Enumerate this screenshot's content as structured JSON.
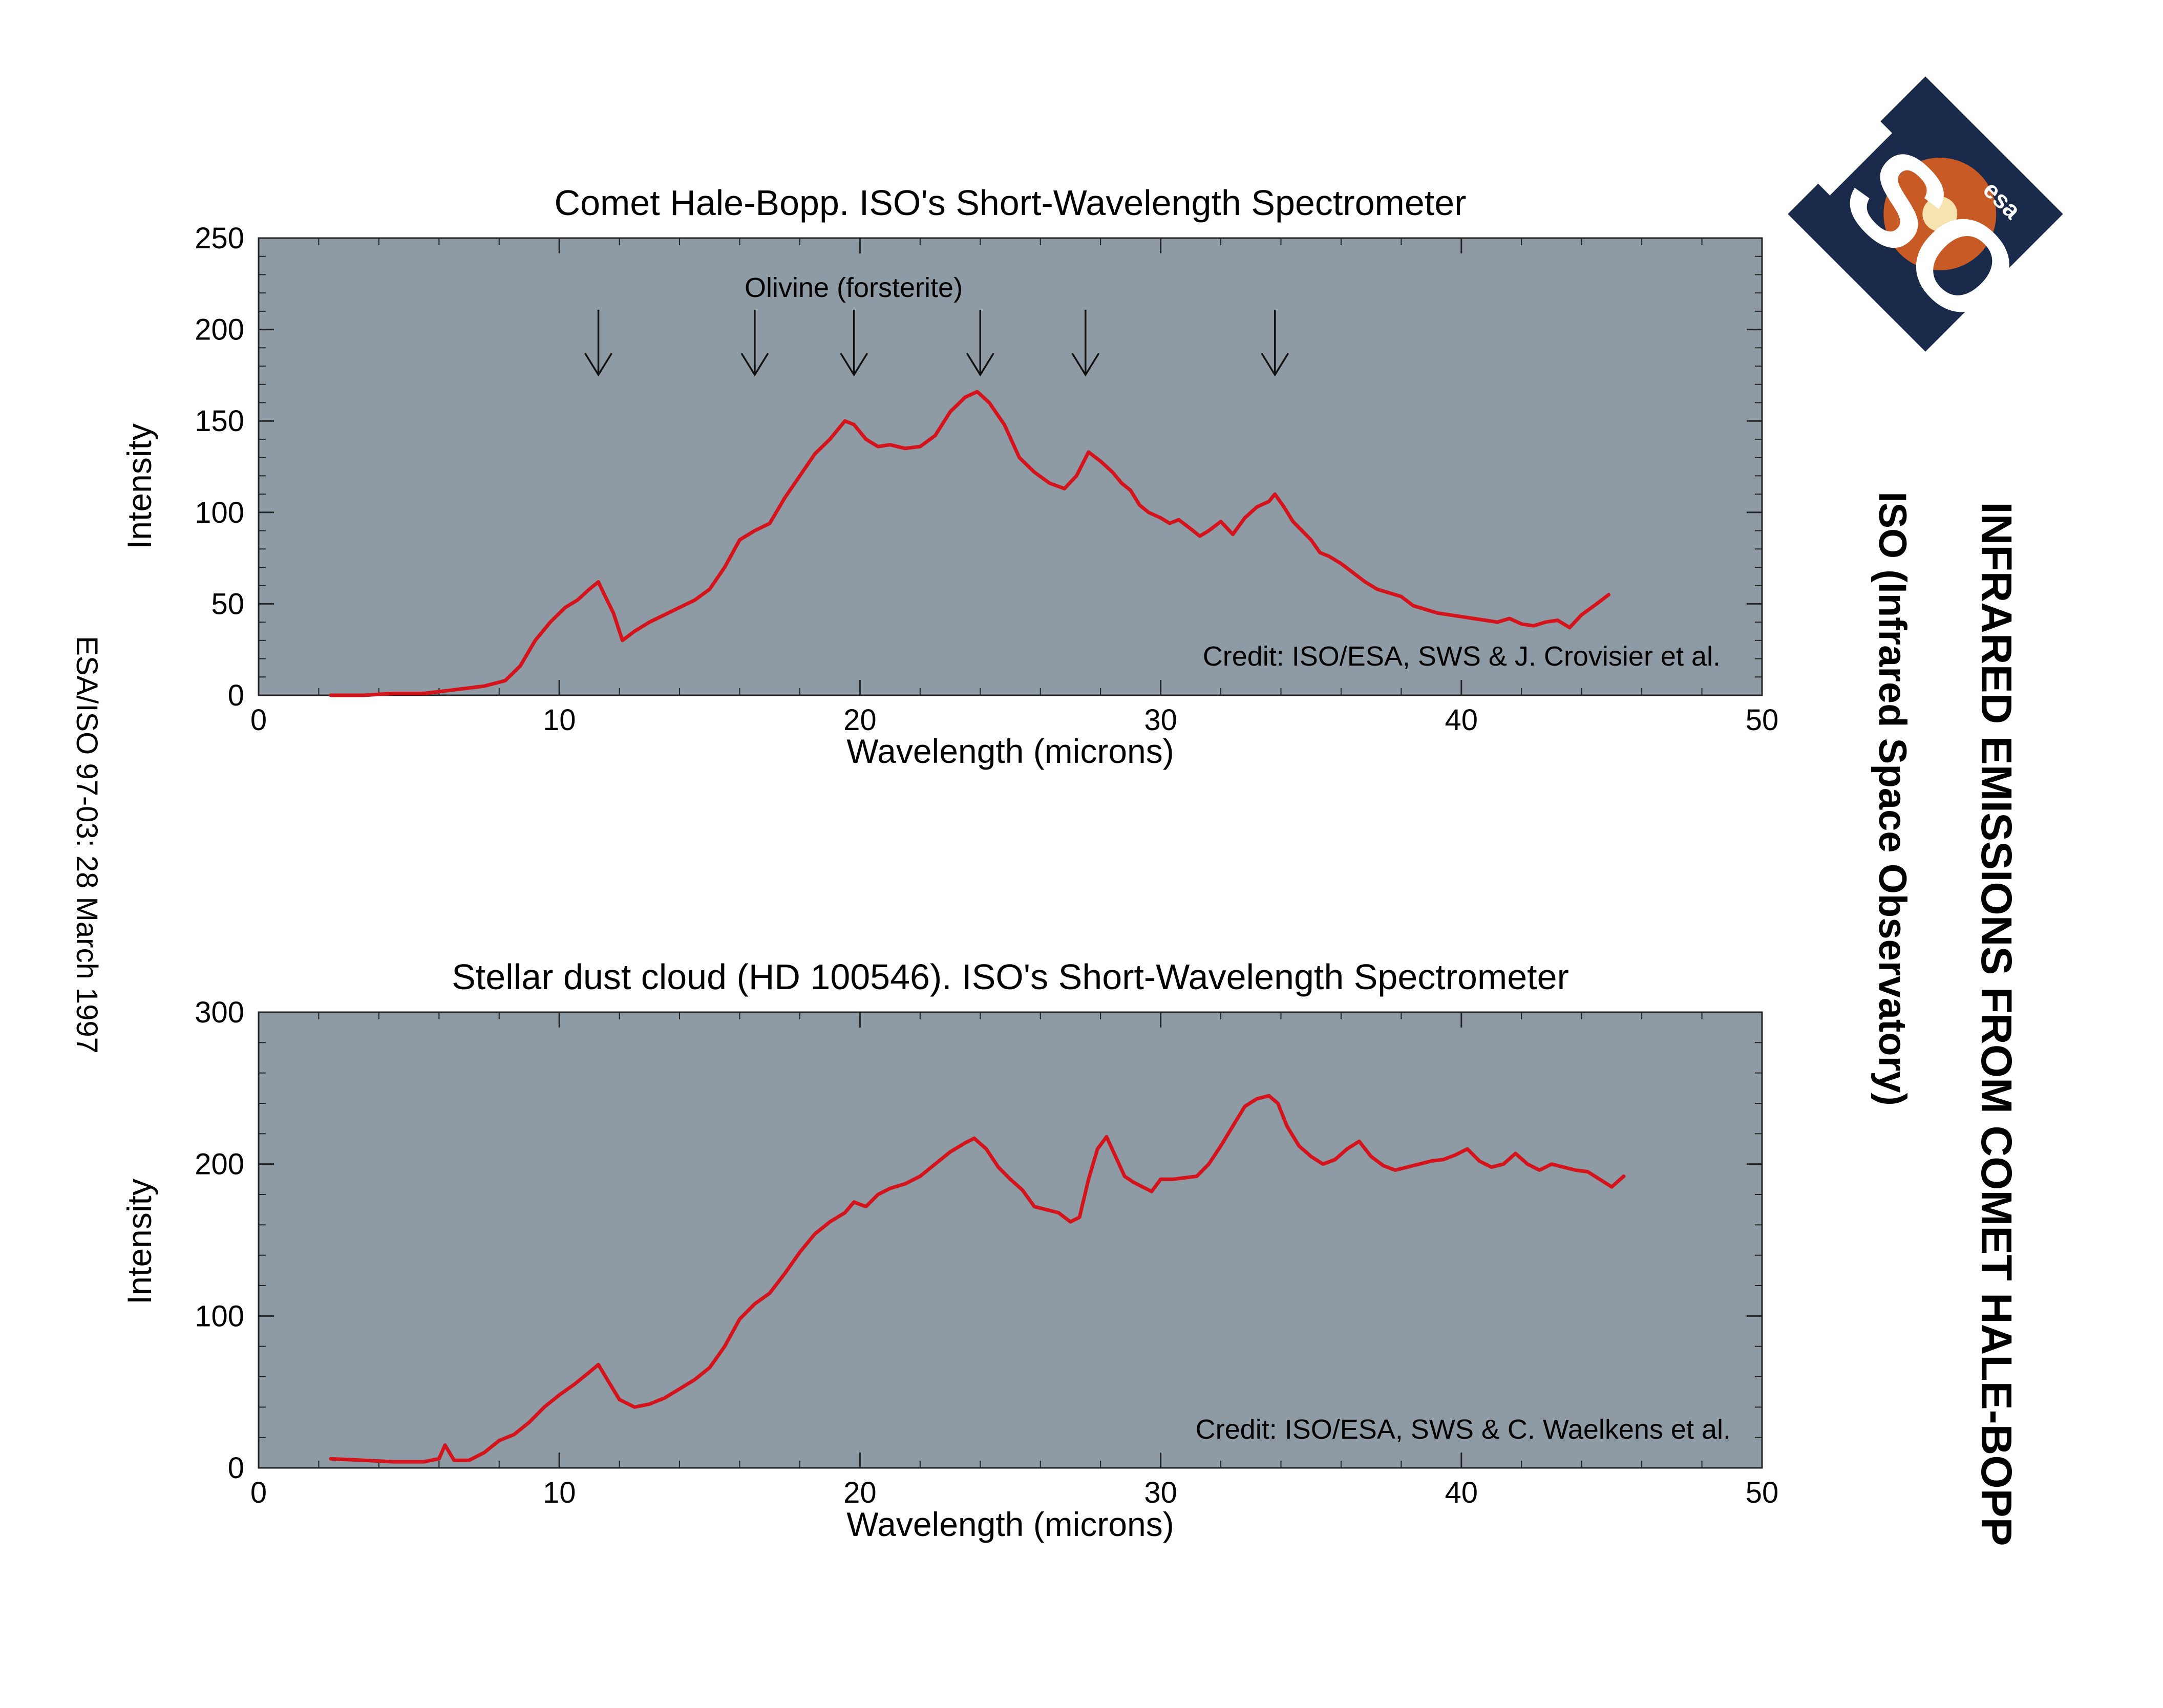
{
  "page": {
    "title": "INFRARED EMISSIONS FROM COMET HALE-BOPP",
    "subtitle": "ISO (Infrared Space Observatory)",
    "reference": "ESA/ISO 97-03: 28 March 1997"
  },
  "logo": {
    "text": "ISO",
    "agency": "esa"
  },
  "colors": {
    "plot_bg": "#8e9ba4",
    "series": "#d4141c",
    "logo_bg": "#1a2a4a",
    "logo_text": "#ffffff",
    "logo_accent": "#e8641e"
  },
  "chart_data": [
    {
      "type": "line",
      "title": "Comet Hale-Bopp. ISO's Short-Wavelength Spectrometer",
      "xlabel": "Wavelength (microns)",
      "ylabel": "Intensity",
      "xlim": [
        0,
        50
      ],
      "ylim": [
        0,
        250
      ],
      "x_ticks": [
        0,
        10,
        20,
        30,
        40,
        50
      ],
      "y_ticks": [
        0,
        50,
        100,
        150,
        200,
        250
      ],
      "credit": "Credit: ISO/ESA, SWS & J. Crovisier et al.",
      "annotation": {
        "text": "Olivine (forsterite)",
        "arrows_x": [
          11.3,
          16.5,
          19.8,
          24.0,
          27.5,
          33.8
        ]
      },
      "series": [
        {
          "x": [
            2.4,
            3.5,
            4.5,
            5.5,
            6.5,
            7.5,
            8.2,
            8.7,
            9.2,
            9.7,
            10.2,
            10.6,
            11.0,
            11.3,
            11.5,
            11.8,
            12.1,
            12.5,
            13.0,
            13.5,
            14.0,
            14.5,
            15.0,
            15.5,
            16.0,
            16.5,
            17.0,
            17.5,
            18.0,
            18.5,
            19.0,
            19.5,
            19.8,
            20.2,
            20.6,
            21.0,
            21.5,
            22.0,
            22.5,
            23.0,
            23.5,
            23.9,
            24.3,
            24.8,
            25.3,
            25.8,
            26.3,
            26.8,
            27.2,
            27.6,
            28.0,
            28.4,
            28.7,
            29.0,
            29.3,
            29.6,
            30.0,
            30.3,
            30.6,
            31.0,
            31.3,
            31.6,
            32.0,
            32.4,
            32.8,
            33.2,
            33.6,
            33.8,
            34.1,
            34.4,
            34.7,
            35.0,
            35.3,
            35.6,
            36.0,
            36.4,
            36.8,
            37.2,
            37.6,
            38.0,
            38.4,
            38.8,
            39.2,
            39.6,
            40.0,
            40.4,
            40.8,
            41.2,
            41.6,
            42.0,
            42.4,
            42.8,
            43.2,
            43.6,
            44.0,
            44.5,
            44.9
          ],
          "y": [
            0,
            0,
            1,
            1,
            3,
            5,
            8,
            16,
            30,
            40,
            48,
            52,
            58,
            62,
            55,
            45,
            30,
            35,
            40,
            44,
            48,
            52,
            58,
            70,
            85,
            90,
            94,
            108,
            120,
            132,
            140,
            150,
            148,
            140,
            136,
            137,
            135,
            136,
            142,
            155,
            163,
            166,
            160,
            148,
            130,
            122,
            116,
            113,
            120,
            133,
            128,
            122,
            116,
            112,
            104,
            100,
            97,
            94,
            96,
            91,
            87,
            90,
            95,
            88,
            97,
            103,
            106,
            110,
            103,
            95,
            90,
            85,
            78,
            76,
            72,
            67,
            62,
            58,
            56,
            54,
            49,
            47,
            45,
            44,
            43,
            42,
            41,
            40,
            42,
            39,
            38,
            40,
            41,
            37,
            44,
            50,
            55
          ]
        }
      ]
    },
    {
      "type": "line",
      "title": "Stellar dust cloud (HD 100546). ISO's Short-Wavelength Spectrometer",
      "xlabel": "Wavelength (microns)",
      "ylabel": "Intensity",
      "xlim": [
        0,
        50
      ],
      "ylim": [
        0,
        300
      ],
      "x_ticks": [
        0,
        10,
        20,
        30,
        40,
        50
      ],
      "y_ticks": [
        0,
        100,
        200,
        300
      ],
      "credit": "Credit: ISO/ESA, SWS & C. Waelkens et al.",
      "series": [
        {
          "x": [
            2.4,
            3.5,
            4.5,
            5.5,
            6.0,
            6.2,
            6.5,
            7.0,
            7.5,
            8.0,
            8.5,
            9.0,
            9.5,
            10.0,
            10.5,
            11.0,
            11.3,
            11.6,
            12.0,
            12.5,
            13.0,
            13.5,
            14.0,
            14.5,
            15.0,
            15.5,
            16.0,
            16.5,
            17.0,
            17.5,
            18.0,
            18.5,
            19.0,
            19.5,
            19.8,
            20.2,
            20.6,
            21.0,
            21.5,
            22.0,
            22.5,
            23.0,
            23.5,
            23.8,
            24.2,
            24.6,
            25.0,
            25.4,
            25.8,
            26.2,
            26.6,
            27.0,
            27.3,
            27.6,
            27.9,
            28.2,
            28.5,
            28.8,
            29.1,
            29.4,
            29.7,
            30.0,
            30.4,
            30.8,
            31.2,
            31.6,
            32.0,
            32.4,
            32.8,
            33.2,
            33.6,
            33.9,
            34.2,
            34.6,
            35.0,
            35.4,
            35.8,
            36.2,
            36.6,
            37.0,
            37.4,
            37.8,
            38.2,
            38.6,
            39.0,
            39.4,
            39.8,
            40.2,
            40.6,
            41.0,
            41.4,
            41.8,
            42.2,
            42.6,
            43.0,
            43.4,
            43.8,
            44.2,
            44.6,
            45.0,
            45.4
          ],
          "y": [
            6,
            5,
            4,
            4,
            6,
            15,
            5,
            5,
            10,
            18,
            22,
            30,
            40,
            48,
            55,
            63,
            68,
            58,
            45,
            40,
            42,
            46,
            52,
            58,
            66,
            80,
            98,
            108,
            115,
            128,
            142,
            154,
            162,
            168,
            175,
            172,
            180,
            184,
            187,
            192,
            200,
            208,
            214,
            217,
            210,
            198,
            190,
            183,
            172,
            170,
            168,
            162,
            165,
            190,
            210,
            218,
            205,
            192,
            188,
            185,
            182,
            190,
            190,
            191,
            192,
            200,
            212,
            225,
            238,
            243,
            245,
            240,
            225,
            212,
            205,
            200,
            203,
            210,
            215,
            205,
            199,
            196,
            198,
            200,
            202,
            203,
            206,
            210,
            202,
            198,
            200,
            207,
            200,
            196,
            200,
            198,
            196,
            195,
            190,
            185,
            192
          ]
        }
      ]
    }
  ]
}
